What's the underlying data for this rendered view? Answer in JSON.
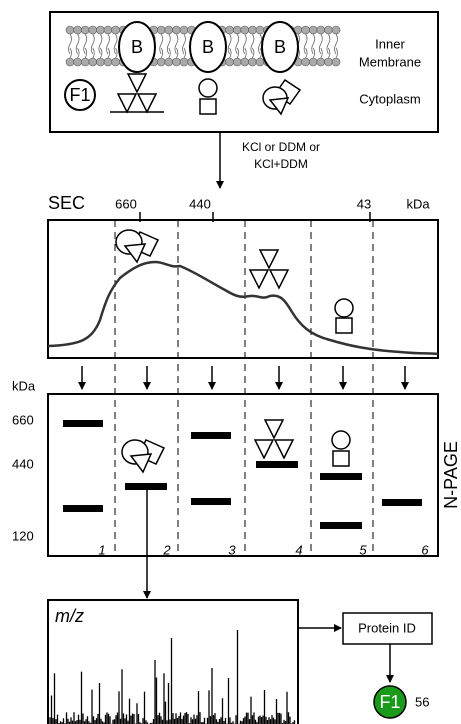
{
  "membrane_panel": {
    "subunit_labels": [
      "B",
      "B",
      "B"
    ],
    "complex_label": "F1",
    "inner_membrane": [
      "Inner",
      "Membrane"
    ],
    "cytoplasm": "Cytoplasm"
  },
  "treatment": [
    "KCl or DDM or",
    "KCl+DDM"
  ],
  "sec_panel": {
    "title": "SEC",
    "unit": "kDa",
    "markers": [
      660,
      440,
      43
    ]
  },
  "npage_panel": {
    "title": "N-PAGE",
    "unit": "kDa",
    "markers": [
      660,
      440,
      120
    ],
    "lanes": [
      1,
      2,
      3,
      4,
      5,
      6
    ]
  },
  "ms_panel": {
    "axis_label": "m/z"
  },
  "protein_id": "Protein ID",
  "result": {
    "label": "F1",
    "count": 56
  }
}
